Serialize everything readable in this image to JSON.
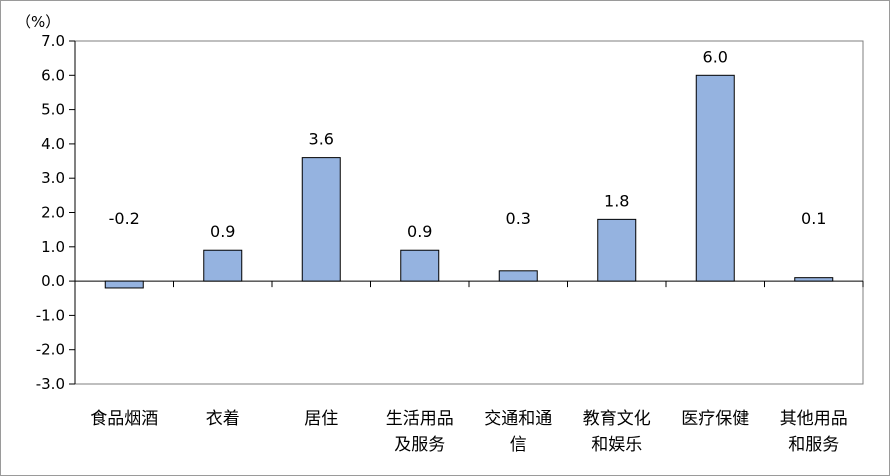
{
  "chart_data": {
    "type": "bar",
    "y_unit": "（%）",
    "categories": [
      [
        "食品烟酒"
      ],
      [
        "衣着"
      ],
      [
        "居住"
      ],
      [
        "生活用品",
        "及服务"
      ],
      [
        "交通和通",
        "信"
      ],
      [
        "教育文化",
        "和娱乐"
      ],
      [
        "医疗保健"
      ],
      [
        "其他用品",
        "和服务"
      ]
    ],
    "values": [
      -0.2,
      0.9,
      3.6,
      0.9,
      0.3,
      1.8,
      6.0,
      0.1
    ],
    "value_labels": [
      "-0.2",
      "0.9",
      "3.6",
      "0.9",
      "0.3",
      "1.8",
      "6.0",
      "0.1"
    ],
    "ylim": [
      -3.0,
      7.0
    ],
    "yticks": [
      "-3.0",
      "-2.0",
      "-1.0",
      "0.0",
      "1.0",
      "2.0",
      "3.0",
      "4.0",
      "5.0",
      "6.0",
      "7.0"
    ],
    "bar_color": "#95b3e0",
    "bar_edge_color": "#000000",
    "grid": false,
    "legend": "none"
  }
}
